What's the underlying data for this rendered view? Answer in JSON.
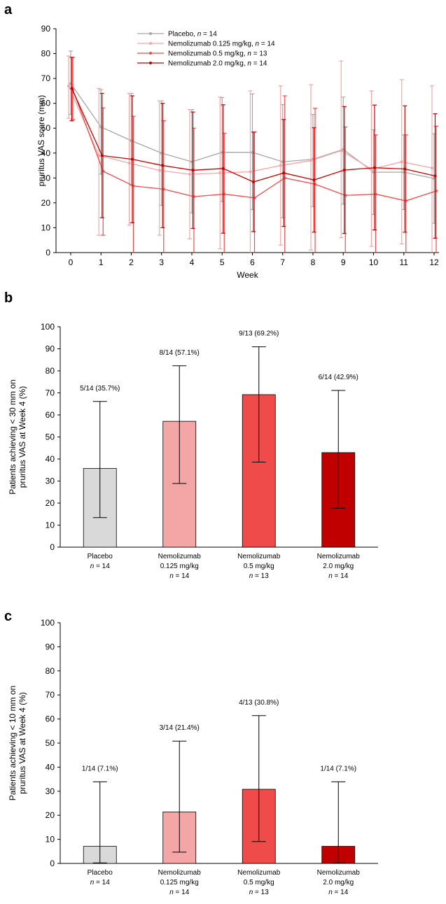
{
  "chart_data": [
    {
      "panel": "a",
      "type": "line",
      "title": "",
      "xlabel": "Week",
      "ylabel": "pruritus VAS score (mm)",
      "xlim": [
        0,
        12
      ],
      "ylim": [
        0,
        90
      ],
      "yticks": [
        0,
        10,
        20,
        30,
        40,
        50,
        60,
        70,
        80,
        90
      ],
      "x": [
        0,
        1,
        2,
        3,
        4,
        5,
        6,
        7,
        8,
        9,
        10,
        11,
        12
      ],
      "series": [
        {
          "name": "Placebo, n = 14",
          "name_main": "Placebo, ",
          "name_n": "n",
          "name_tail": " = 14",
          "color": "#a6a6a6",
          "values": [
            68,
            50.5,
            45,
            40,
            36.5,
            40.3,
            40.3,
            36.5,
            37.5,
            41.5,
            32.3,
            32.3,
            29.8
          ],
          "err_low": [
            12.5,
            19,
            18,
            21,
            20.5,
            19.8,
            23,
            22.5,
            19,
            22,
            17,
            15,
            18
          ],
          "err_high": [
            13,
            15,
            19,
            21,
            21,
            22,
            23.5,
            23,
            18,
            21,
            17,
            15,
            18
          ]
        },
        {
          "name": "Nemolizumab 0.125 mg/kg, n = 14",
          "name_main": "Nemolizumab 0.125 mg/kg, ",
          "name_n": "n",
          "name_tail": " = 14",
          "color": "#f4a6a6",
          "values": [
            67,
            39,
            36,
            33,
            31.5,
            32,
            32.5,
            35,
            37,
            41,
            33.5,
            36.5,
            34
          ],
          "err_low": [
            13,
            32,
            25,
            26,
            26,
            30.5,
            32.5,
            32,
            36,
            35,
            31,
            33,
            34
          ],
          "err_high": [
            12,
            27,
            28,
            28,
            26,
            30.5,
            32.5,
            32,
            30.5,
            36,
            31.5,
            33,
            33
          ]
        },
        {
          "name": "Nemolizumab 0.5 mg/kg, n = 13",
          "name_main": "Nemolizumab 0.5 mg/kg, ",
          "name_n": "n",
          "name_tail": " = 13",
          "color": "#f04b4b",
          "values": [
            65.5,
            32.7,
            26.8,
            25.5,
            22.5,
            23.5,
            22,
            30,
            27.5,
            23,
            23.5,
            20.8,
            24.8
          ],
          "err_low": [
            12,
            25.7,
            26.8,
            25.5,
            22.5,
            23.5,
            22,
            30,
            27.5,
            23,
            23.5,
            20.8,
            24.8
          ],
          "err_high": [
            13,
            25.5,
            28,
            27.5,
            27.5,
            24.5,
            26.5,
            33,
            30.5,
            27.5,
            23.8,
            26.5,
            26
          ]
        },
        {
          "name": "Nemolizumab 2.0 mg/kg, n = 14",
          "name_main": "Nemolizumab 2.0 mg/kg, ",
          "name_n": "n",
          "name_tail": " = 14",
          "color": "#c00000",
          "values": [
            66,
            39,
            37.5,
            35,
            33.1,
            33.8,
            28.4,
            32,
            29.2,
            33.2,
            34.1,
            33.6,
            30.8
          ],
          "err_low": [
            13,
            25,
            25.5,
            25,
            23.4,
            26,
            20,
            21.5,
            21,
            25.5,
            25,
            25.4,
            25
          ],
          "err_high": [
            12.5,
            25,
            25.5,
            25,
            23.4,
            25.6,
            20,
            21.5,
            21,
            25.5,
            25.2,
            25.4,
            25
          ]
        }
      ]
    },
    {
      "panel": "b",
      "type": "bar",
      "ylabel_line1": "Patients achieving < 30 mm on",
      "ylabel_line2": "pruritus VAS at Week 4 (%)",
      "ylim": [
        0,
        100
      ],
      "yticks": [
        0,
        10,
        20,
        30,
        40,
        50,
        60,
        70,
        80,
        90,
        100
      ],
      "categories": [
        {
          "line1": "Placebo",
          "line2": "",
          "n_label": "n",
          "n_value": " = 14"
        },
        {
          "line1": "Nemolizumab",
          "line2": "0.125 mg/kg",
          "n_label": "n",
          "n_value": " = 14"
        },
        {
          "line1": "Nemolizumab",
          "line2": "0.5 mg/kg",
          "n_label": "n",
          "n_value": " = 13"
        },
        {
          "line1": "Nemolizumab",
          "line2": "2.0 mg/kg",
          "n_label": "n",
          "n_value": " = 14"
        }
      ],
      "values": [
        35.7,
        57.1,
        69.2,
        42.9
      ],
      "ci_low": [
        13.4,
        28.9,
        38.6,
        17.7
      ],
      "ci_high": [
        66.1,
        82.3,
        90.9,
        71.1
      ],
      "labels": [
        "5/14 (35.7%)",
        "8/14 (57.1%)",
        "9/13 (69.2%)",
        "6/14 (42.9%)"
      ],
      "colors": [
        "#d9d9d9",
        "#f4a6a6",
        "#f04b4b",
        "#c00000"
      ]
    },
    {
      "panel": "c",
      "type": "bar",
      "ylabel_line1": "Patients achieving < 10 mm on",
      "ylabel_line2": "pruritus VAS at Week 4 (%)",
      "ylim": [
        0,
        100
      ],
      "yticks": [
        0,
        10,
        20,
        30,
        40,
        50,
        60,
        70,
        80,
        90,
        100
      ],
      "categories": [
        {
          "line1": "Placebo",
          "line2": "",
          "n_label": "n",
          "n_value": " = 14"
        },
        {
          "line1": "Nemolizumab",
          "line2": "0.125 mg/kg",
          "n_label": "n",
          "n_value": " = 14"
        },
        {
          "line1": "Nemolizumab",
          "line2": "0.5 mg/kg",
          "n_label": "n",
          "n_value": " = 13"
        },
        {
          "line1": "Nemolizumab",
          "line2": "2.0 mg/kg",
          "n_label": "n",
          "n_value": " = 14"
        }
      ],
      "values": [
        7.1,
        21.4,
        30.8,
        7.1
      ],
      "ci_low": [
        0.2,
        4.7,
        9.1,
        0.2
      ],
      "ci_high": [
        33.9,
        50.8,
        61.4,
        33.9
      ],
      "labels": [
        "1/14 (7.1%)",
        "3/14 (21.4%)",
        "4/13 (30.8%)",
        "1/14 (7.1%)"
      ],
      "colors": [
        "#d9d9d9",
        "#f4a6a6",
        "#f04b4b",
        "#c00000"
      ]
    }
  ]
}
